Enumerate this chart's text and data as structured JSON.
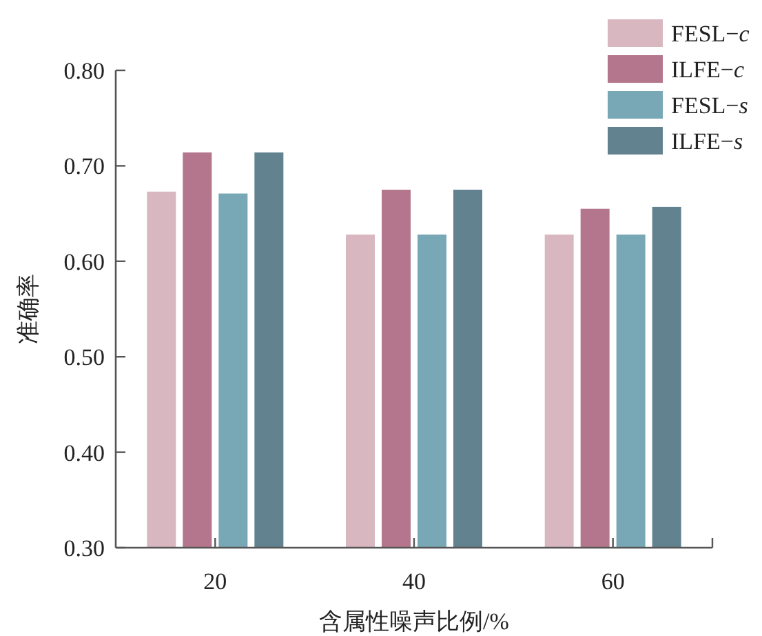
{
  "chart_data": {
    "type": "bar",
    "xlabel": "含属性噪声比例/%",
    "ylabel": "准确率",
    "categories": [
      "20",
      "40",
      "60"
    ],
    "series": [
      {
        "name": "FESL−*c*",
        "color": "#d9b7c0",
        "values": [
          0.673,
          0.628,
          0.628
        ]
      },
      {
        "name": "ILFE−*c*",
        "color": "#b4768c",
        "values": [
          0.714,
          0.675,
          0.655
        ]
      },
      {
        "name": "FESL−*s*",
        "color": "#78a7b6",
        "values": [
          0.671,
          0.628,
          0.628
        ]
      },
      {
        "name": "ILFE−*s*",
        "color": "#62828f",
        "values": [
          0.714,
          0.675,
          0.657
        ]
      }
    ],
    "ylim": [
      0.3,
      0.8
    ],
    "yticks": [
      {
        "value": 0.3,
        "label": "0.30"
      },
      {
        "value": 0.4,
        "label": "0.40"
      },
      {
        "value": 0.5,
        "label": "0.50"
      },
      {
        "value": 0.6,
        "label": "0.60"
      },
      {
        "value": 0.7,
        "label": "0.70"
      },
      {
        "value": 0.8,
        "label": "0.80"
      }
    ],
    "legend": "top right"
  }
}
